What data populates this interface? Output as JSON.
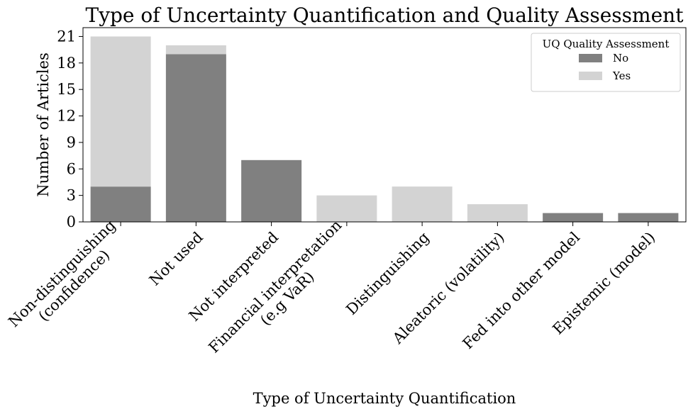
{
  "chart_data": {
    "type": "bar",
    "stacked": true,
    "title": "Type of Uncertainty Quantification and Quality Assessment",
    "xlabel": "Type of Uncertainty Quantification",
    "ylabel": "Number of Articles",
    "categories": [
      [
        "Non-distinguishing",
        "(confidence)"
      ],
      [
        "Not used"
      ],
      [
        "Not interpreted"
      ],
      [
        "Financial interpretation",
        "(e.g VaR)"
      ],
      [
        "Distinguishing"
      ],
      [
        "Aleatoric (volatility)"
      ],
      [
        "Fed into other model"
      ],
      [
        "Epistemic (model)"
      ]
    ],
    "series": [
      {
        "name": "No",
        "color": "#808080",
        "values": [
          4,
          19,
          7,
          0,
          0,
          0,
          1,
          1
        ]
      },
      {
        "name": "Yes",
        "color": "#d3d3d3",
        "values": [
          17,
          1,
          0,
          3,
          4,
          2,
          0,
          0
        ]
      }
    ],
    "ylim": [
      0,
      22
    ],
    "yticks": [
      0,
      3,
      6,
      9,
      12,
      15,
      18,
      21
    ],
    "legend": {
      "title": "UQ Quality Assessment",
      "placement": "top-right"
    },
    "grid": false
  }
}
